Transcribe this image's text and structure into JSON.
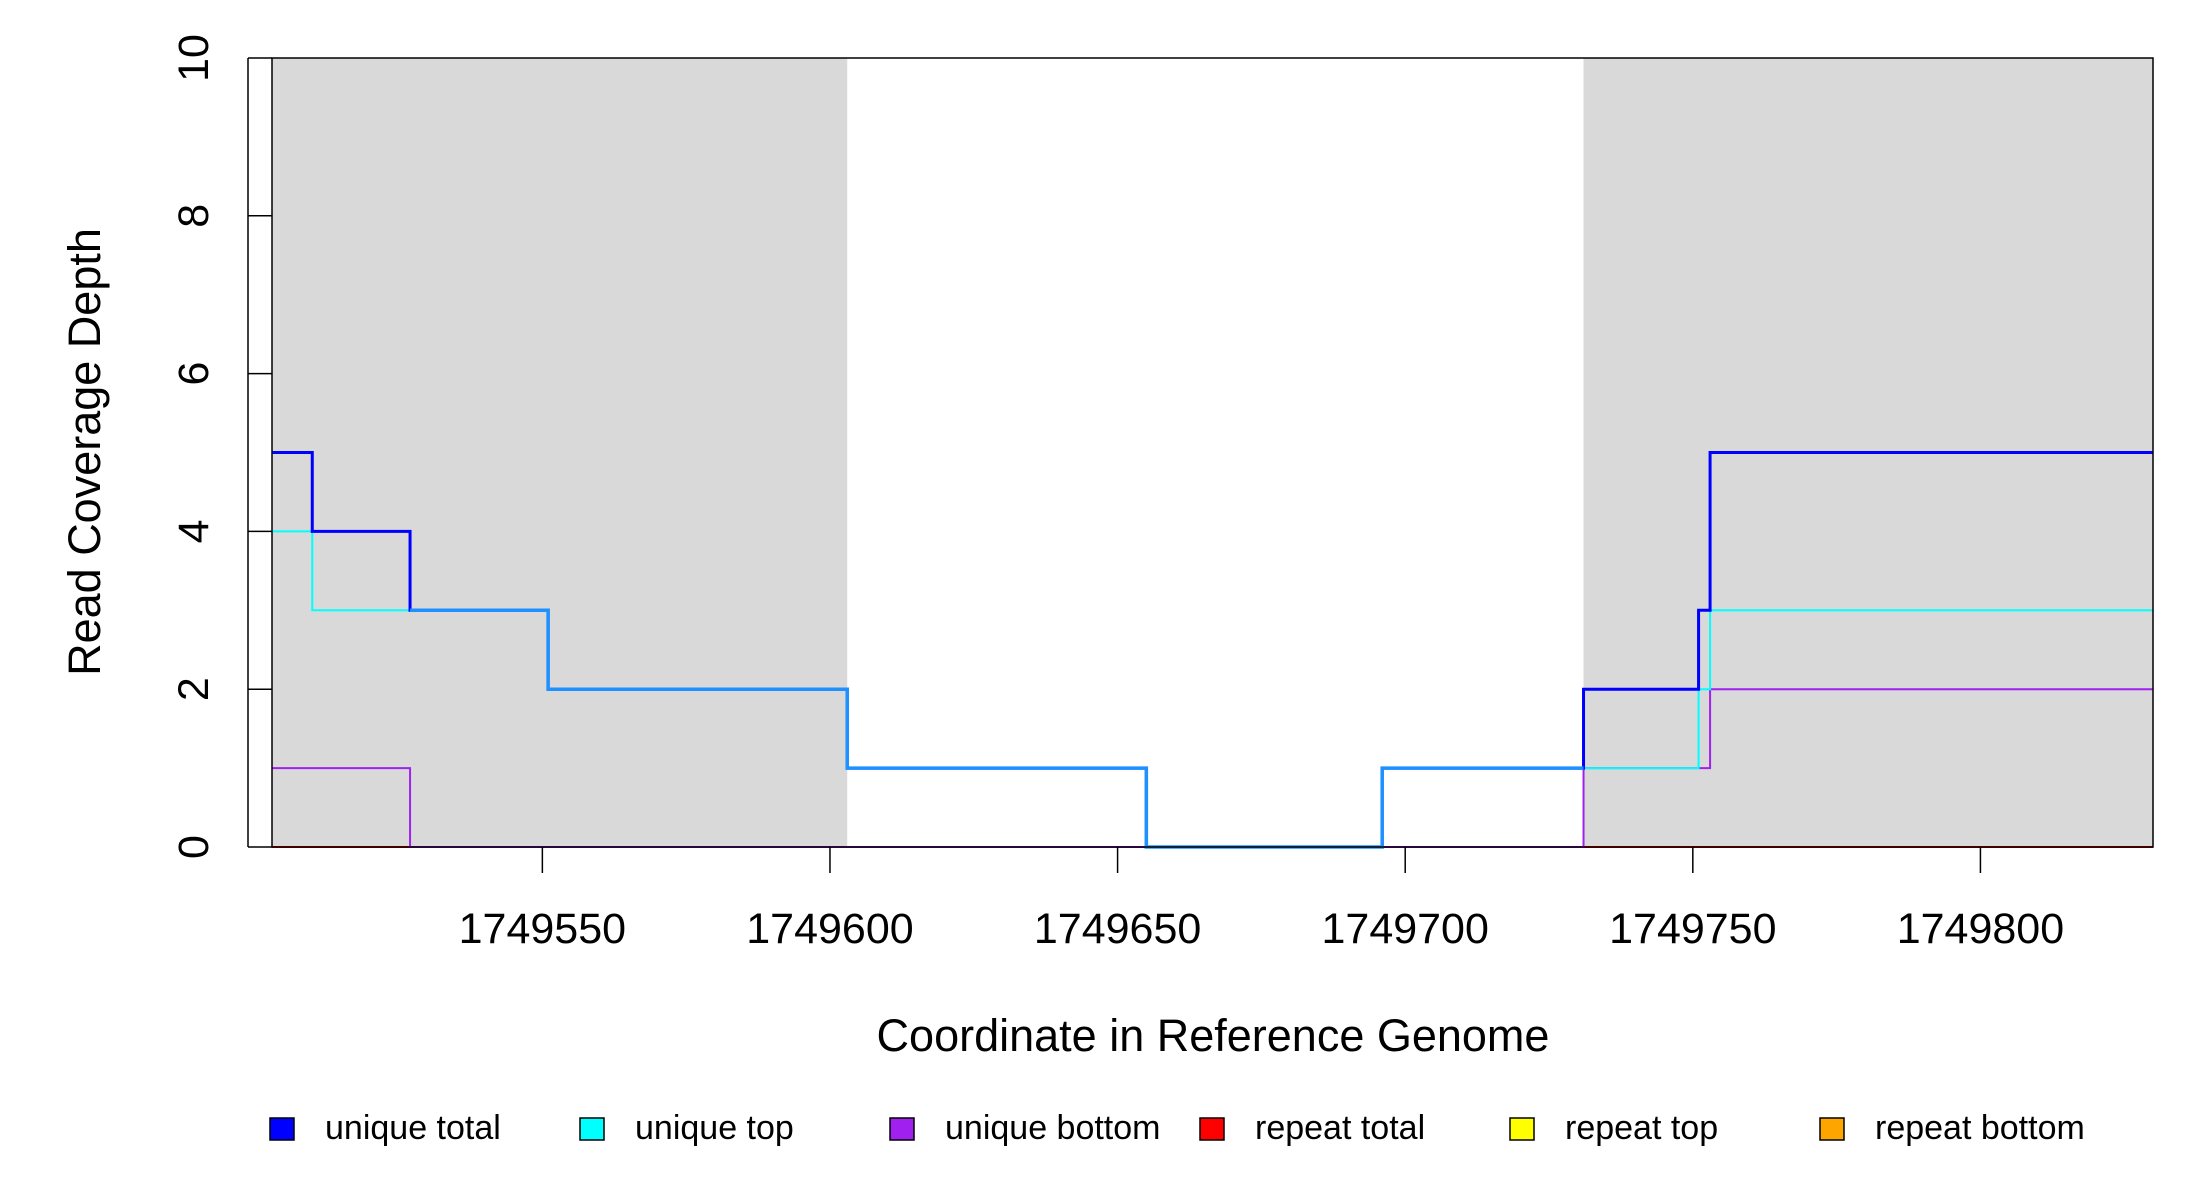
{
  "chart_data": {
    "type": "line",
    "title": "",
    "xlabel": "Coordinate in Reference Genome",
    "ylabel": "Read Coverage Depth",
    "xlim": [
      1749503,
      1749830
    ],
    "ylim": [
      0,
      10
    ],
    "x_ticks": [
      1749550,
      1749600,
      1749650,
      1749700,
      1749750,
      1749800
    ],
    "x_tick_labels": [
      "1749550",
      "1749600",
      "1749650",
      "1749700",
      "1749750",
      "1749800"
    ],
    "y_ticks": [
      0,
      2,
      4,
      6,
      8,
      10
    ],
    "y_tick_labels": [
      "0",
      "2",
      "4",
      "6",
      "8",
      "10"
    ],
    "grid": false,
    "legend_position": "bottom",
    "shaded_regions": [
      {
        "x_start": 1749503,
        "x_end": 1749603,
        "color": "#d9d9d9"
      },
      {
        "x_start": 1749731,
        "x_end": 1749830,
        "color": "#d9d9d9"
      }
    ],
    "series": [
      {
        "name": "unique total",
        "color": "#0000ff",
        "step_x": [
          1749503,
          1749510,
          1749527,
          1749551,
          1749603,
          1749655,
          1749696,
          1749731,
          1749751,
          1749753,
          1749830
        ],
        "step_y": [
          5,
          4,
          3,
          2,
          1,
          0,
          1,
          2,
          3,
          5
        ]
      },
      {
        "name": "unique top",
        "color": "#00ffff",
        "step_x": [
          1749503,
          1749510,
          1749551,
          1749603,
          1749655,
          1749696,
          1749751,
          1749753,
          1749830
        ],
        "step_y": [
          4,
          3,
          2,
          1,
          0,
          1,
          2,
          3
        ]
      },
      {
        "name": "unique bottom",
        "color": "#a020f0",
        "step_x": [
          1749503,
          1749527,
          1749731,
          1749753,
          1749830
        ],
        "step_y": [
          1,
          0,
          1,
          2
        ]
      },
      {
        "name": "repeat total",
        "color": "#ff0000",
        "step_x": [
          1749503,
          1749830
        ],
        "step_y": [
          0
        ]
      },
      {
        "name": "repeat top",
        "color": "#ffff00",
        "step_x": [
          1749503,
          1749830
        ],
        "step_y": [
          0
        ]
      },
      {
        "name": "repeat bottom",
        "color": "#ffa500",
        "step_x": [
          1749503,
          1749830
        ],
        "step_y": [
          0
        ]
      }
    ]
  }
}
